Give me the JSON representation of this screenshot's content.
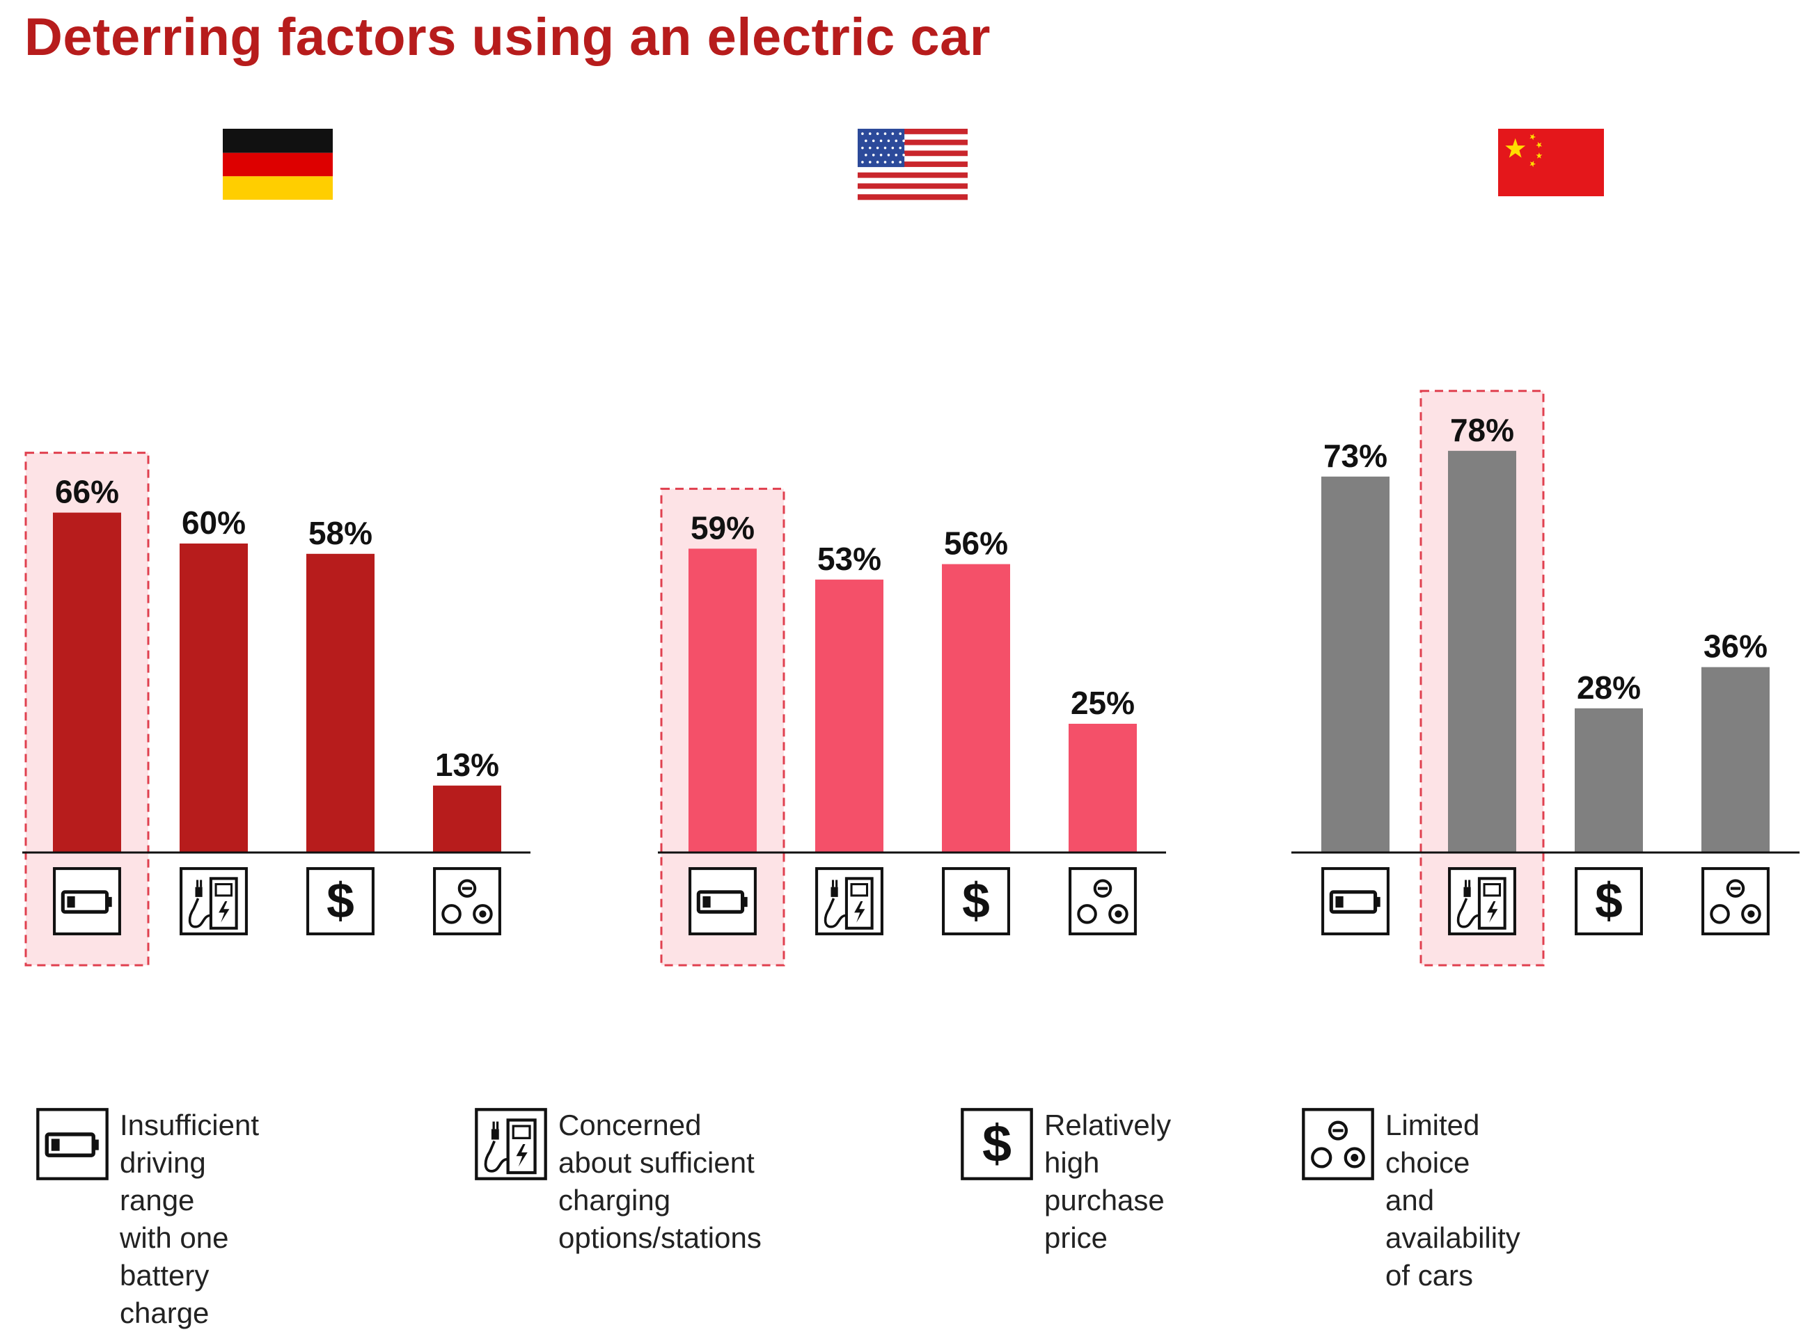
{
  "title": "Deterring factors using an electric car",
  "chart_data": {
    "type": "bar",
    "title": "Deterring factors using an electric car",
    "categories": [
      "Insufficient driving range with one battery charge",
      "Concerned about sufficient charging options/stations",
      "Relatively high purchase price",
      "Limited choice and availability of cars"
    ],
    "category_icons": [
      "battery-icon",
      "charging-station-icon",
      "dollar-icon",
      "car-choice-icon"
    ],
    "series": [
      {
        "name": "Germany",
        "flag": "germany-flag",
        "color": "#b71c1c",
        "values": [
          66,
          60,
          58,
          13
        ],
        "labels": [
          "66%",
          "60%",
          "58%",
          "13%"
        ],
        "highlight_index": 0
      },
      {
        "name": "USA",
        "flag": "usa-flag",
        "color": "#f45069",
        "values": [
          59,
          53,
          56,
          25
        ],
        "labels": [
          "59%",
          "53%",
          "56%",
          "25%"
        ],
        "highlight_index": 0
      },
      {
        "name": "China",
        "flag": "china-flag",
        "color": "#808080",
        "values": [
          73,
          78,
          28,
          36
        ],
        "labels": [
          "73%",
          "78%",
          "28%",
          "36%"
        ],
        "highlight_index": 1
      }
    ],
    "ylim": [
      0,
      100
    ],
    "grid": false,
    "highlight_color": "#fde3e6",
    "highlight_border": "#e0404f"
  },
  "legend": [
    {
      "icon": "battery-icon",
      "text": "Insufficient driving range\nwith one battery charge"
    },
    {
      "icon": "charging-station-icon",
      "text": "Concerned about sufficient\ncharging options/stations"
    },
    {
      "icon": "dollar-icon",
      "text": "Relatively high\npurchase price"
    },
    {
      "icon": "car-choice-icon",
      "text": "Limited choice and\navailability of cars"
    }
  ]
}
